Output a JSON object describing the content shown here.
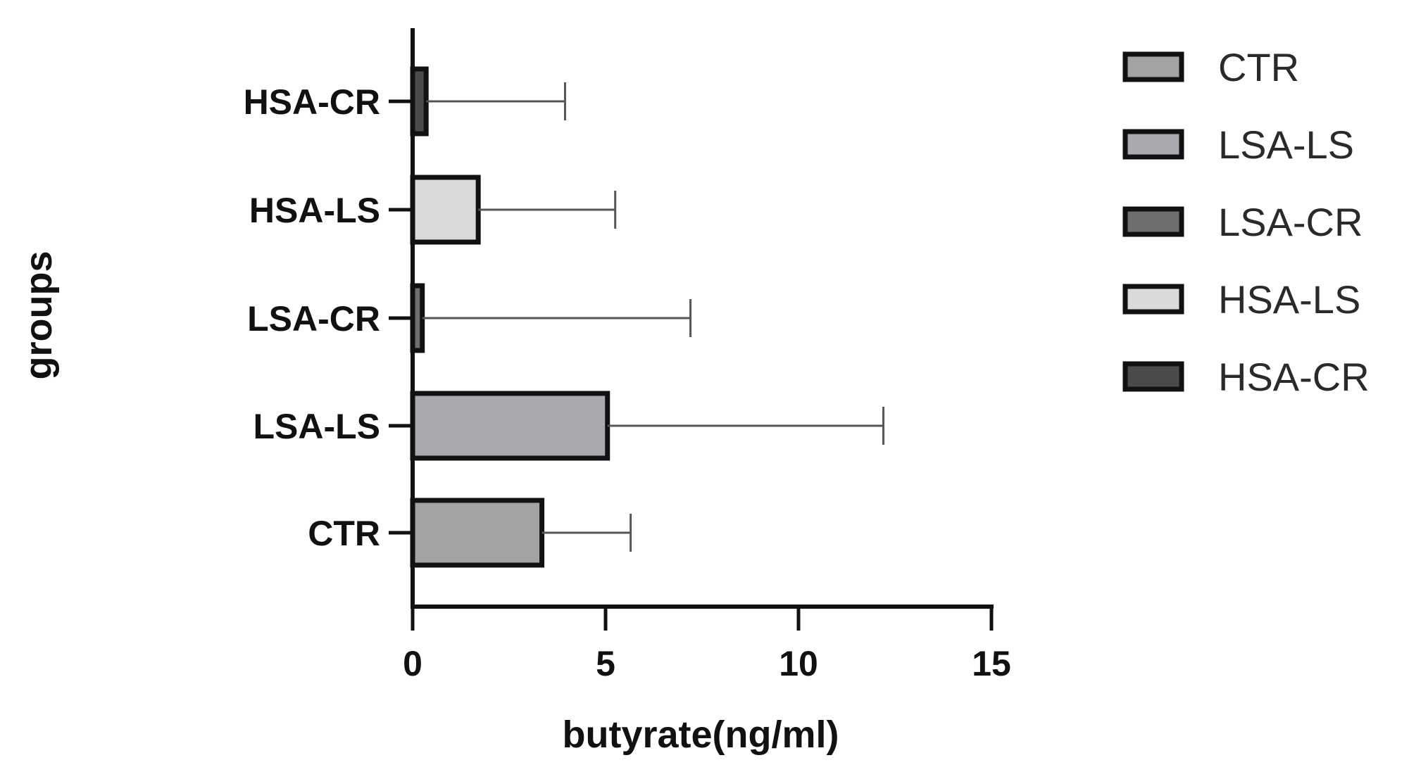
{
  "chart_data": {
    "type": "bar",
    "orientation": "horizontal",
    "title": "",
    "xlabel": "butyrate(ng/ml)",
    "ylabel": "groups",
    "xlim": [
      0,
      15
    ],
    "xticks": [
      0,
      5,
      10,
      15
    ],
    "xtick_labels": [
      "0",
      "5",
      "10",
      "15"
    ],
    "grid": false,
    "legend_position": "top-right",
    "categories": [
      "CTR",
      "LSA-LS",
      "LSA-CR",
      "HSA-LS",
      "HSA-CR"
    ],
    "values": [
      3.35,
      5.05,
      0.25,
      1.7,
      0.35
    ],
    "error_plus": [
      2.3,
      7.15,
      6.95,
      3.55,
      3.6
    ],
    "colors": [
      "#a3a3a3",
      "#a9a9af",
      "#6f6f6f",
      "#dadada",
      "#4b4b4b"
    ],
    "legend": [
      "CTR",
      "LSA-LS",
      "LSA-CR",
      "HSA-LS",
      "HSA-CR"
    ]
  }
}
